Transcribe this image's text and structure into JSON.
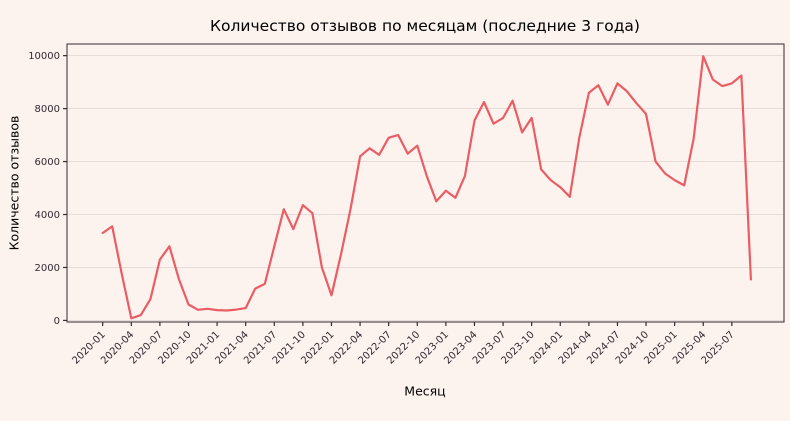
{
  "chart_data": {
    "type": "line",
    "title": "Количество отзывов по месяцам (последние 3 года)",
    "xlabel": "Месяц",
    "ylabel": "Количество отзывов",
    "x": [
      "2020-01",
      "2020-02",
      "2020-03",
      "2020-04",
      "2020-05",
      "2020-06",
      "2020-07",
      "2020-08",
      "2020-09",
      "2020-10",
      "2020-11",
      "2020-12",
      "2021-01",
      "2021-02",
      "2021-03",
      "2021-04",
      "2021-05",
      "2021-06",
      "2021-07",
      "2021-08",
      "2021-09",
      "2021-10",
      "2021-11",
      "2021-12",
      "2022-01",
      "2022-02",
      "2022-03",
      "2022-04",
      "2022-05",
      "2022-06",
      "2022-07",
      "2022-08",
      "2022-09",
      "2022-10",
      "2022-11",
      "2022-12",
      "2023-01",
      "2023-02",
      "2023-03",
      "2023-04",
      "2023-05",
      "2023-06",
      "2023-07",
      "2023-08",
      "2023-09",
      "2023-10",
      "2023-11",
      "2023-12",
      "2024-01",
      "2024-02",
      "2024-03",
      "2024-04",
      "2024-05",
      "2024-06",
      "2024-07",
      "2024-08",
      "2024-09",
      "2024-10",
      "2024-11",
      "2024-12",
      "2025-01",
      "2025-02",
      "2025-03",
      "2025-04",
      "2025-05",
      "2025-06",
      "2025-07",
      "2025-08",
      "2025-09"
    ],
    "values": [
      3300,
      3550,
      1750,
      80,
      200,
      800,
      2300,
      2800,
      1550,
      600,
      400,
      440,
      390,
      375,
      410,
      465,
      1200,
      1380,
      2800,
      4200,
      3450,
      4350,
      4050,
      2000,
      950,
      2500,
      4200,
      6200,
      6500,
      6250,
      6900,
      7000,
      6300,
      6600,
      5450,
      4500,
      4900,
      4630,
      5450,
      7550,
      8250,
      7430,
      7650,
      8300,
      7100,
      7650,
      5700,
      5300,
      5030,
      4670,
      6900,
      8600,
      8880,
      8150,
      8950,
      8650,
      8200,
      7800,
      6000,
      5550,
      5300,
      5100,
      6880,
      9980,
      9100,
      8850,
      8950,
      9250,
      1550
    ],
    "yticks": [
      0,
      2000,
      4000,
      6000,
      8000,
      10000
    ],
    "xtick_every": 3,
    "ylim": [
      0,
      10000
    ],
    "grid": true,
    "legend": "none",
    "colors": {
      "background": "#fcf3ee",
      "line": "#ea5d64",
      "grid": "#e8dcd8",
      "spine": "#332a32",
      "text": "#332a32"
    }
  }
}
